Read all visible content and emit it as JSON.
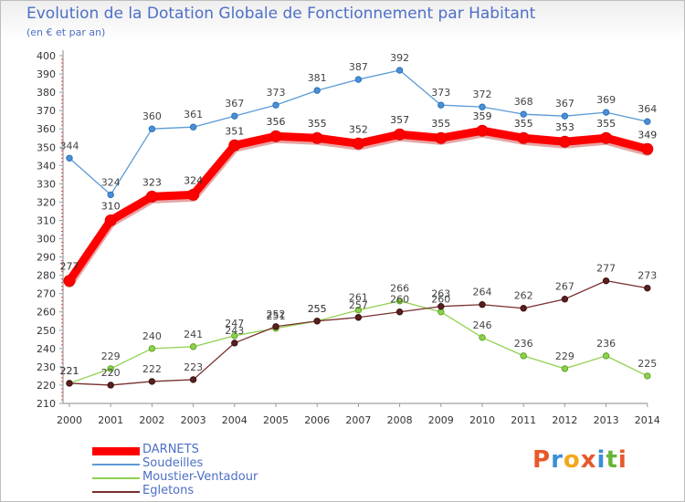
{
  "title": "Evolution de la Dotation Globale de Fonctionnement par Habitant",
  "subtitle": "(en € et par an)",
  "logo": {
    "text": "Proxiti",
    "colors": [
      "#e8582b",
      "#3b8fd6",
      "#f2a81d",
      "#e8582b",
      "#3b8fd6",
      "#67b637",
      "#e8582b"
    ]
  },
  "chart_data": {
    "type": "line",
    "title": "Evolution de la Dotation Globale de Fonctionnement par Habitant",
    "subtitle": "(en € et par an)",
    "x": [
      "2000",
      "2001",
      "2002",
      "2003",
      "2004",
      "2005",
      "2006",
      "2007",
      "2008",
      "2009",
      "2010",
      "2011",
      "2012",
      "2013",
      "2014"
    ],
    "ylim": [
      210,
      400
    ],
    "yticks": [
      210,
      220,
      230,
      240,
      250,
      260,
      270,
      280,
      290,
      300,
      310,
      320,
      330,
      340,
      350,
      360,
      370,
      380,
      390,
      400
    ],
    "grid": false,
    "legend_position": "bottom-left",
    "series": [
      {
        "name": "DARNETS",
        "color": "#ff0000",
        "values": [
          277,
          310,
          323,
          324,
          351,
          356,
          355,
          352,
          357,
          355,
          359,
          355,
          353,
          355,
          349
        ]
      },
      {
        "name": "Soudeilles",
        "color": "#5b9bd5",
        "values": [
          344,
          324,
          360,
          361,
          367,
          373,
          381,
          387,
          392,
          373,
          372,
          368,
          367,
          369,
          364
        ]
      },
      {
        "name": "Moustier-Ventadour",
        "color": "#8fd14f",
        "values": [
          221,
          229,
          240,
          241,
          247,
          251,
          255,
          261,
          266,
          260,
          246,
          236,
          229,
          236,
          225
        ]
      },
      {
        "name": "Egletons",
        "color": "#7a2e2e",
        "values": [
          221,
          220,
          222,
          223,
          243,
          252,
          255,
          257,
          260,
          263,
          264,
          262,
          267,
          277,
          273
        ]
      }
    ]
  }
}
